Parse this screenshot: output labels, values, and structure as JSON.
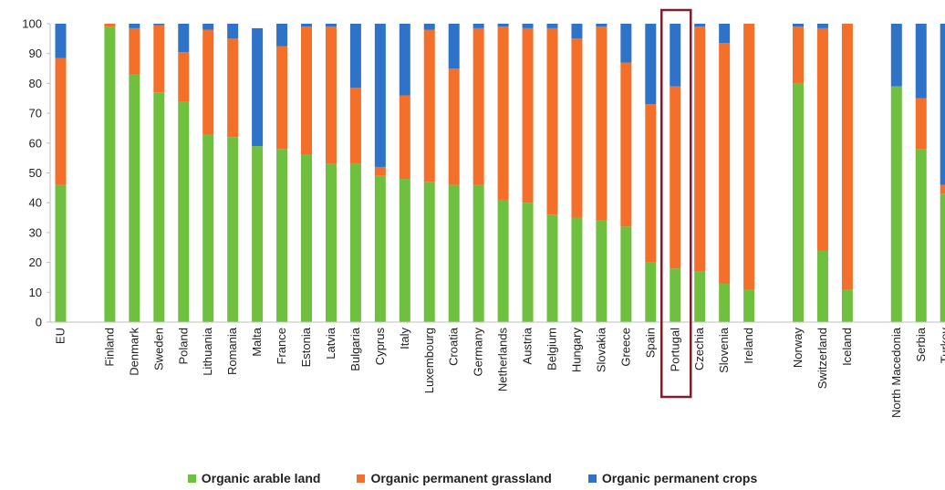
{
  "chart_data": {
    "type": "bar",
    "stacked": true,
    "title": "",
    "xlabel": "",
    "ylabel": "",
    "ylim": [
      0,
      100
    ],
    "yticks": [
      0,
      10,
      20,
      30,
      40,
      50,
      60,
      70,
      80,
      90,
      100
    ],
    "grid": false,
    "legend_position": "bottom",
    "highlight": "Portugal",
    "highlight_color": "#7b1f2e",
    "categories": [
      "EU",
      "",
      "Finland",
      "Denmark",
      "Sweden",
      "Poland",
      "Lithuania",
      "Romania",
      "Malta",
      "France",
      "Estonia",
      "Latvia",
      "Bulgaria",
      "Cyprus",
      "Italy",
      "Luxembourg",
      "Croatia",
      "Germany",
      "Netherlands",
      "Austria",
      "Belgium",
      "Hungary",
      "Slovakia",
      "Greece",
      "Spain",
      "Portugal",
      "Czechia",
      "Slovenia",
      "Ireland",
      "",
      "Norway",
      "Switzerland",
      "Iceland",
      "",
      "North Macedonia",
      "Serbia",
      "Turkey"
    ],
    "series": [
      {
        "name": "Organic arable land",
        "color": "#70c040",
        "values": [
          46,
          null,
          99,
          83,
          77,
          74,
          63,
          62,
          59,
          58,
          56,
          53,
          53,
          49,
          48,
          47,
          46,
          46,
          41,
          40,
          36,
          35,
          34,
          32,
          20,
          18,
          17,
          13,
          11,
          null,
          80,
          24,
          11,
          null,
          79,
          58,
          43
        ]
      },
      {
        "name": "Organic permanent grassland",
        "color": "#f36f2a",
        "values": [
          42.5,
          null,
          1,
          15.5,
          22.5,
          16.5,
          35,
          33,
          0,
          34.5,
          43,
          46,
          25.5,
          3,
          28,
          51,
          39,
          52.5,
          58,
          58.5,
          62.5,
          60,
          65,
          55,
          53,
          61,
          82,
          80.5,
          89,
          null,
          19,
          74.5,
          89,
          null,
          0,
          17,
          3
        ]
      },
      {
        "name": "Organic permanent crops",
        "color": "#2e73c8",
        "values": [
          11.5,
          null,
          0,
          1.5,
          0.5,
          9.5,
          2,
          5,
          39.5,
          7.5,
          1,
          1,
          21.5,
          48,
          24,
          2,
          15,
          1.5,
          1,
          1.5,
          1.5,
          5,
          1,
          13,
          27,
          21,
          1,
          6.5,
          0,
          null,
          1,
          1.5,
          0,
          null,
          21,
          25,
          54
        ]
      }
    ]
  }
}
